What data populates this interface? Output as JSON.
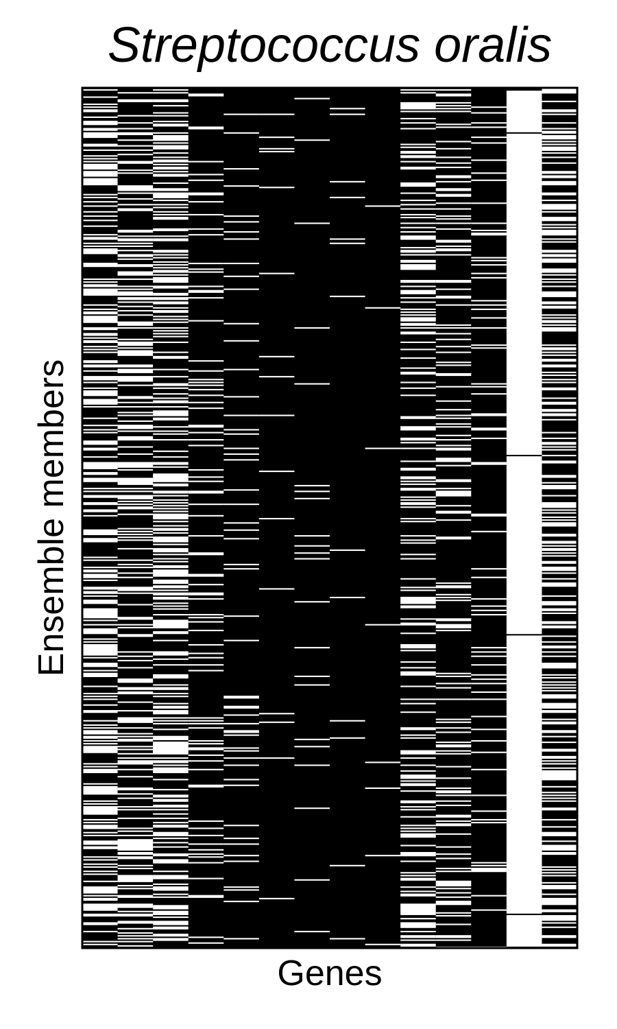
{
  "chart_data": {
    "type": "heatmap",
    "title": "Streptococcus oralis",
    "xlabel": "Genes",
    "ylabel": "Ensemble members",
    "n_genes": 14,
    "n_members": 600,
    "legend": "none",
    "grid": false,
    "colors": {
      "present": "#000000",
      "absent": "#ffffff"
    },
    "gene_fraction_absent": [
      0.45,
      0.35,
      0.42,
      0.12,
      0.1,
      0.04,
      0.03,
      0.02,
      0.01,
      0.3,
      0.22,
      0.12,
      1.0,
      0.45
    ],
    "gene_long_absent_runs": [
      {
        "gene": 12,
        "member_ranges": [
          [
            2,
            30
          ],
          [
            32,
            255
          ],
          [
            257,
            380
          ],
          [
            382,
            575
          ],
          [
            577,
            598
          ]
        ]
      },
      {
        "gene": 1,
        "member_ranges": [
          [
            524,
            531
          ]
        ]
      },
      {
        "gene": 2,
        "member_ranges": [
          [
            457,
            464
          ]
        ]
      },
      {
        "gene": 9,
        "member_ranges": [
          [
            10,
            14
          ]
        ]
      }
    ]
  }
}
